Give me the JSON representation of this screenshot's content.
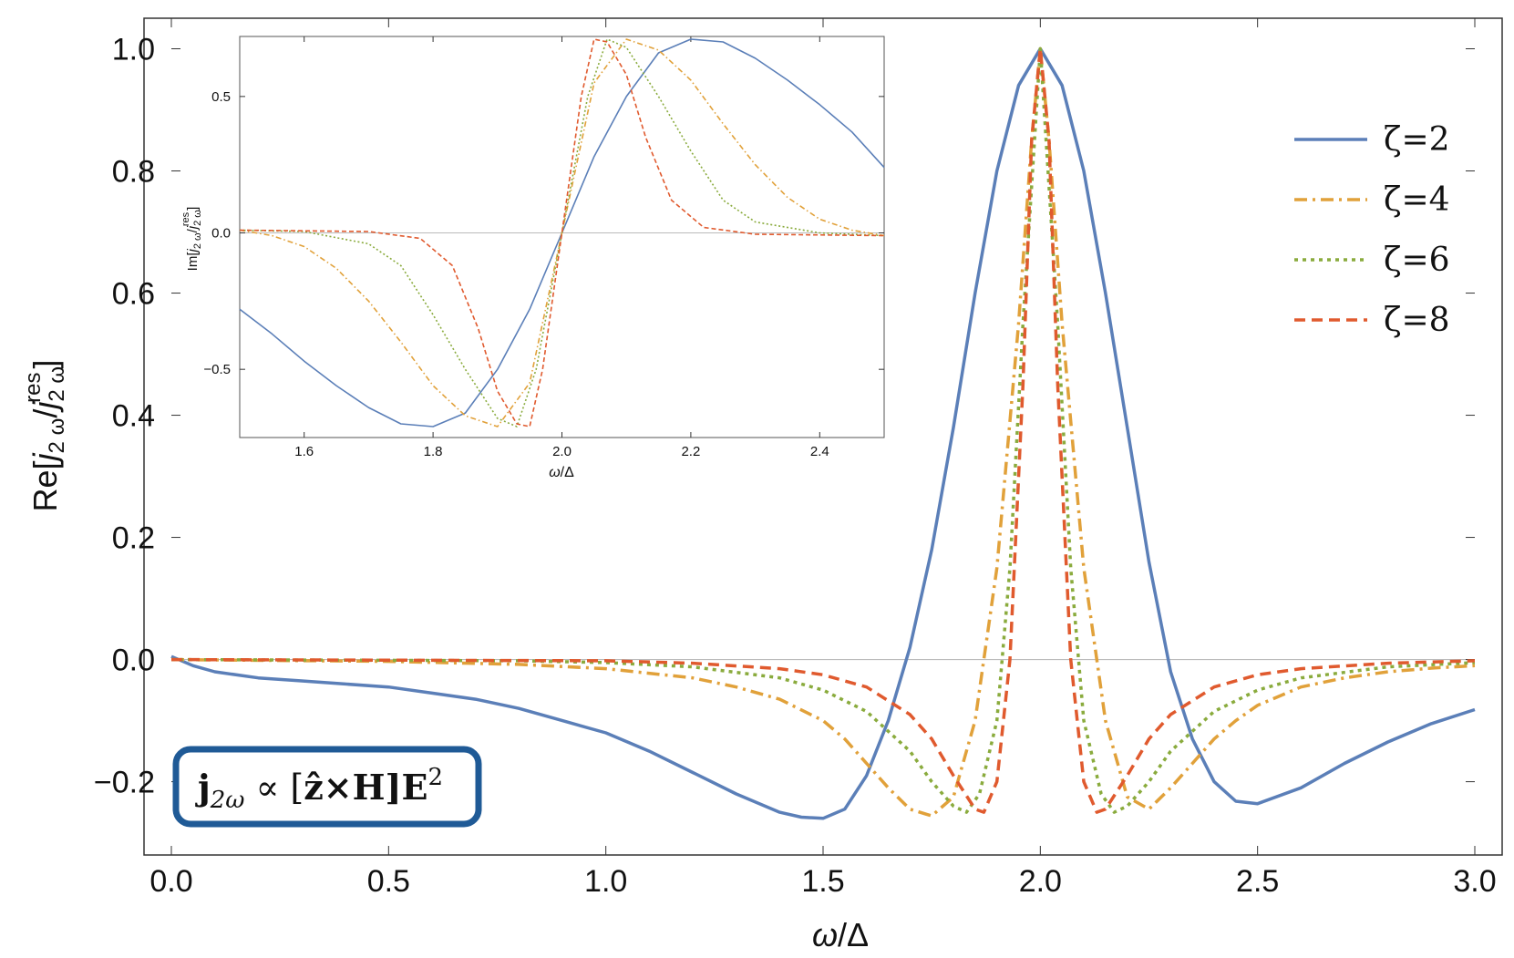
{
  "chart_data": [
    {
      "type": "line",
      "xlabel_var": "ω",
      "xlabel_sep": "/",
      "xlabel_unit": "Δ",
      "ylabel": "Re[j2ω/j2ωres]",
      "xlim": [
        0.0,
        3.0
      ],
      "ylim": [
        -0.32,
        1.05
      ],
      "x_ticks": [
        "0.0",
        "0.5",
        "1.0",
        "1.5",
        "2.0",
        "2.5",
        "3.0"
      ],
      "y_ticks": [
        "−0.2",
        "0.0",
        "0.2",
        "0.4",
        "0.6",
        "0.8",
        "1.0"
      ],
      "legend_position": "top-right",
      "annotation": {
        "j": "j",
        "j_sub": "2ω",
        "prop": " ∝ [",
        "zhat": "ẑ",
        "cross": "×H]E",
        "sup": "2"
      },
      "series": [
        {
          "name": "ζ=2",
          "color": "#5b7fb8",
          "dash": "solid",
          "points": [
            [
              0.0,
              0.005
            ],
            [
              0.05,
              -0.01
            ],
            [
              0.1,
              -0.02
            ],
            [
              0.2,
              -0.03
            ],
            [
              0.3,
              -0.035
            ],
            [
              0.4,
              -0.04
            ],
            [
              0.5,
              -0.045
            ],
            [
              0.6,
              -0.055
            ],
            [
              0.7,
              -0.065
            ],
            [
              0.8,
              -0.08
            ],
            [
              0.9,
              -0.1
            ],
            [
              1.0,
              -0.12
            ],
            [
              1.1,
              -0.15
            ],
            [
              1.2,
              -0.185
            ],
            [
              1.3,
              -0.22
            ],
            [
              1.4,
              -0.25
            ],
            [
              1.45,
              -0.258
            ],
            [
              1.5,
              -0.26
            ],
            [
              1.55,
              -0.245
            ],
            [
              1.6,
              -0.19
            ],
            [
              1.65,
              -0.1
            ],
            [
              1.7,
              0.02
            ],
            [
              1.75,
              0.18
            ],
            [
              1.8,
              0.38
            ],
            [
              1.85,
              0.6
            ],
            [
              1.9,
              0.8
            ],
            [
              1.95,
              0.94
            ],
            [
              2.0,
              1.0
            ],
            [
              2.05,
              0.94
            ],
            [
              2.1,
              0.8
            ],
            [
              2.15,
              0.6
            ],
            [
              2.2,
              0.38
            ],
            [
              2.25,
              0.16
            ],
            [
              2.3,
              -0.02
            ],
            [
              2.35,
              -0.13
            ],
            [
              2.4,
              -0.2
            ],
            [
              2.45,
              -0.232
            ],
            [
              2.5,
              -0.236
            ],
            [
              2.6,
              -0.21
            ],
            [
              2.7,
              -0.17
            ],
            [
              2.8,
              -0.135
            ],
            [
              2.9,
              -0.105
            ],
            [
              3.0,
              -0.082
            ]
          ]
        },
        {
          "name": "ζ=4",
          "color": "#e1a13a",
          "dash": "dashdot",
          "points": [
            [
              0.0,
              0.0
            ],
            [
              0.5,
              -0.003
            ],
            [
              0.8,
              -0.008
            ],
            [
              1.0,
              -0.015
            ],
            [
              1.2,
              -0.03
            ],
            [
              1.3,
              -0.045
            ],
            [
              1.4,
              -0.065
            ],
            [
              1.5,
              -0.1
            ],
            [
              1.55,
              -0.13
            ],
            [
              1.6,
              -0.17
            ],
            [
              1.65,
              -0.21
            ],
            [
              1.7,
              -0.245
            ],
            [
              1.75,
              -0.256
            ],
            [
              1.8,
              -0.225
            ],
            [
              1.85,
              -0.1
            ],
            [
              1.9,
              0.15
            ],
            [
              1.95,
              0.55
            ],
            [
              1.98,
              0.85
            ],
            [
              2.0,
              1.0
            ],
            [
              2.02,
              0.85
            ],
            [
              2.05,
              0.55
            ],
            [
              2.1,
              0.15
            ],
            [
              2.15,
              -0.1
            ],
            [
              2.2,
              -0.225
            ],
            [
              2.25,
              -0.245
            ],
            [
              2.3,
              -0.21
            ],
            [
              2.35,
              -0.17
            ],
            [
              2.4,
              -0.13
            ],
            [
              2.45,
              -0.1
            ],
            [
              2.5,
              -0.075
            ],
            [
              2.6,
              -0.045
            ],
            [
              2.7,
              -0.03
            ],
            [
              2.8,
              -0.02
            ],
            [
              2.9,
              -0.014
            ],
            [
              3.0,
              -0.01
            ]
          ]
        },
        {
          "name": "ζ=6",
          "color": "#8aab3d",
          "dash": "dotted",
          "points": [
            [
              0.0,
              0.0
            ],
            [
              0.8,
              -0.002
            ],
            [
              1.0,
              -0.005
            ],
            [
              1.2,
              -0.012
            ],
            [
              1.4,
              -0.03
            ],
            [
              1.5,
              -0.05
            ],
            [
              1.6,
              -0.085
            ],
            [
              1.7,
              -0.15
            ],
            [
              1.75,
              -0.2
            ],
            [
              1.8,
              -0.24
            ],
            [
              1.83,
              -0.25
            ],
            [
              1.86,
              -0.22
            ],
            [
              1.9,
              -0.1
            ],
            [
              1.93,
              0.15
            ],
            [
              1.96,
              0.55
            ],
            [
              2.0,
              1.0
            ],
            [
              2.04,
              0.55
            ],
            [
              2.07,
              0.15
            ],
            [
              2.1,
              -0.1
            ],
            [
              2.14,
              -0.22
            ],
            [
              2.17,
              -0.25
            ],
            [
              2.2,
              -0.24
            ],
            [
              2.25,
              -0.2
            ],
            [
              2.3,
              -0.15
            ],
            [
              2.4,
              -0.085
            ],
            [
              2.5,
              -0.05
            ],
            [
              2.6,
              -0.03
            ],
            [
              2.8,
              -0.012
            ],
            [
              3.0,
              -0.005
            ]
          ]
        },
        {
          "name": "ζ=8",
          "color": "#e05a2e",
          "dash": "dashed",
          "points": [
            [
              0.0,
              0.0
            ],
            [
              1.0,
              -0.002
            ],
            [
              1.2,
              -0.006
            ],
            [
              1.4,
              -0.015
            ],
            [
              1.5,
              -0.025
            ],
            [
              1.6,
              -0.045
            ],
            [
              1.7,
              -0.09
            ],
            [
              1.75,
              -0.13
            ],
            [
              1.8,
              -0.19
            ],
            [
              1.85,
              -0.245
            ],
            [
              1.87,
              -0.25
            ],
            [
              1.9,
              -0.2
            ],
            [
              1.93,
              0.0
            ],
            [
              1.96,
              0.45
            ],
            [
              1.98,
              0.85
            ],
            [
              2.0,
              1.0
            ],
            [
              2.02,
              0.85
            ],
            [
              2.04,
              0.45
            ],
            [
              2.07,
              0.0
            ],
            [
              2.1,
              -0.2
            ],
            [
              2.13,
              -0.25
            ],
            [
              2.15,
              -0.245
            ],
            [
              2.2,
              -0.19
            ],
            [
              2.25,
              -0.13
            ],
            [
              2.3,
              -0.09
            ],
            [
              2.4,
              -0.045
            ],
            [
              2.5,
              -0.025
            ],
            [
              2.6,
              -0.015
            ],
            [
              2.8,
              -0.006
            ],
            [
              3.0,
              -0.002
            ]
          ]
        }
      ]
    },
    {
      "type": "line",
      "xlabel_var": "ω",
      "xlabel_sep": "/",
      "xlabel_unit": "Δ",
      "ylabel": "Im[j2ω/j2ωres]",
      "xlim": [
        1.5,
        2.5
      ],
      "ylim": [
        -0.75,
        0.72
      ],
      "x_ticks": [
        "1.6",
        "1.8",
        "2.0",
        "2.2",
        "2.4"
      ],
      "y_ticks": [
        "−0.5",
        "0.0",
        "0.5"
      ],
      "series": [
        {
          "color": "#5b7fb8",
          "dash": "solid",
          "points": [
            [
              1.5,
              -0.28
            ],
            [
              1.55,
              -0.37
            ],
            [
              1.6,
              -0.47
            ],
            [
              1.65,
              -0.56
            ],
            [
              1.7,
              -0.64
            ],
            [
              1.75,
              -0.7
            ],
            [
              1.8,
              -0.71
            ],
            [
              1.85,
              -0.66
            ],
            [
              1.9,
              -0.5
            ],
            [
              1.95,
              -0.28
            ],
            [
              2.0,
              0.0
            ],
            [
              2.05,
              0.28
            ],
            [
              2.1,
              0.5
            ],
            [
              2.15,
              0.66
            ],
            [
              2.2,
              0.71
            ],
            [
              2.25,
              0.7
            ],
            [
              2.3,
              0.64
            ],
            [
              2.35,
              0.56
            ],
            [
              2.4,
              0.47
            ],
            [
              2.45,
              0.37
            ],
            [
              2.5,
              0.24
            ]
          ]
        },
        {
          "color": "#e1a13a",
          "dash": "dashdot",
          "points": [
            [
              1.5,
              0.01
            ],
            [
              1.55,
              -0.01
            ],
            [
              1.6,
              -0.05
            ],
            [
              1.65,
              -0.13
            ],
            [
              1.7,
              -0.25
            ],
            [
              1.75,
              -0.4
            ],
            [
              1.8,
              -0.56
            ],
            [
              1.85,
              -0.67
            ],
            [
              1.9,
              -0.71
            ],
            [
              1.95,
              -0.55
            ],
            [
              2.0,
              0.0
            ],
            [
              2.05,
              0.55
            ],
            [
              2.1,
              0.71
            ],
            [
              2.15,
              0.67
            ],
            [
              2.2,
              0.56
            ],
            [
              2.25,
              0.4
            ],
            [
              2.3,
              0.25
            ],
            [
              2.35,
              0.13
            ],
            [
              2.4,
              0.05
            ],
            [
              2.45,
              0.01
            ],
            [
              2.5,
              -0.01
            ]
          ]
        },
        {
          "color": "#8aab3d",
          "dash": "dotted",
          "points": [
            [
              1.5,
              0.01
            ],
            [
              1.6,
              0.005
            ],
            [
              1.7,
              -0.04
            ],
            [
              1.75,
              -0.12
            ],
            [
              1.8,
              -0.3
            ],
            [
              1.85,
              -0.5
            ],
            [
              1.9,
              -0.68
            ],
            [
              1.93,
              -0.71
            ],
            [
              1.96,
              -0.5
            ],
            [
              2.0,
              0.0
            ],
            [
              2.04,
              0.5
            ],
            [
              2.07,
              0.71
            ],
            [
              2.1,
              0.68
            ],
            [
              2.15,
              0.5
            ],
            [
              2.2,
              0.3
            ],
            [
              2.25,
              0.12
            ],
            [
              2.3,
              0.04
            ],
            [
              2.4,
              0.0
            ],
            [
              2.5,
              -0.01
            ]
          ]
        },
        {
          "color": "#e05a2e",
          "dash": "dashed",
          "points": [
            [
              1.5,
              0.01
            ],
            [
              1.7,
              0.005
            ],
            [
              1.78,
              -0.02
            ],
            [
              1.83,
              -0.12
            ],
            [
              1.87,
              -0.35
            ],
            [
              1.9,
              -0.58
            ],
            [
              1.93,
              -0.7
            ],
            [
              1.95,
              -0.71
            ],
            [
              1.97,
              -0.5
            ],
            [
              2.0,
              0.0
            ],
            [
              2.03,
              0.5
            ],
            [
              2.05,
              0.71
            ],
            [
              2.07,
              0.7
            ],
            [
              2.1,
              0.58
            ],
            [
              2.13,
              0.35
            ],
            [
              2.17,
              0.12
            ],
            [
              2.22,
              0.02
            ],
            [
              2.3,
              -0.005
            ],
            [
              2.5,
              -0.01
            ]
          ]
        }
      ]
    }
  ]
}
